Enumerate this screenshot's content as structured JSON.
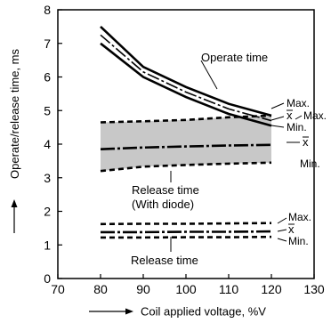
{
  "chart_data": {
    "type": "line",
    "xlabel": "Coil applied voltage, %V",
    "ylabel": "Operate/release time, ms",
    "xlim": [
      70,
      130
    ],
    "ylim": [
      0,
      8
    ],
    "xticks": [
      70,
      80,
      90,
      100,
      110,
      120,
      130
    ],
    "yticks": [
      0,
      1,
      2,
      3,
      4,
      5,
      6,
      7,
      8
    ],
    "grid": false,
    "series": [
      {
        "name": "Operate time",
        "stat": "max",
        "x": [
          80,
          90,
          100,
          110,
          120
        ],
        "y": [
          7.5,
          6.3,
          5.7,
          5.2,
          4.85
        ]
      },
      {
        "name": "Operate time",
        "stat": "mean",
        "x": [
          80,
          90,
          100,
          110,
          120
        ],
        "y": [
          7.25,
          6.15,
          5.55,
          5.05,
          4.7
        ]
      },
      {
        "name": "Operate time",
        "stat": "min",
        "x": [
          80,
          90,
          100,
          110,
          120
        ],
        "y": [
          7.0,
          6.0,
          5.4,
          4.9,
          4.55
        ]
      },
      {
        "name": "Release time (With diode)",
        "stat": "max",
        "x": [
          80,
          90,
          100,
          110,
          120
        ],
        "y": [
          4.65,
          4.68,
          4.72,
          4.8,
          4.85
        ]
      },
      {
        "name": "Release time (With diode)",
        "stat": "mean",
        "x": [
          80,
          90,
          100,
          110,
          120
        ],
        "y": [
          3.85,
          3.9,
          3.93,
          3.96,
          3.98
        ]
      },
      {
        "name": "Release time (With diode)",
        "stat": "min",
        "x": [
          80,
          90,
          100,
          110,
          120
        ],
        "y": [
          3.2,
          3.33,
          3.38,
          3.42,
          3.45
        ]
      },
      {
        "name": "Release time",
        "stat": "max",
        "x": [
          80,
          90,
          100,
          110,
          120
        ],
        "y": [
          1.62,
          1.63,
          1.63,
          1.64,
          1.65
        ]
      },
      {
        "name": "Release time",
        "stat": "mean",
        "x": [
          80,
          90,
          100,
          110,
          120
        ],
        "y": [
          1.38,
          1.38,
          1.39,
          1.39,
          1.4
        ]
      },
      {
        "name": "Release time",
        "stat": "min",
        "x": [
          80,
          90,
          100,
          110,
          120
        ],
        "y": [
          1.22,
          1.22,
          1.23,
          1.23,
          1.24
        ]
      }
    ],
    "annotations": {
      "operate_label": "Operate time",
      "release_diode_label_1": "Release time",
      "release_diode_label_2": "(With diode)",
      "release_label": "Release time",
      "max": "Max.",
      "mean": "x",
      "min": "Min."
    },
    "colors": {
      "line": "#000000",
      "band_fill": "#c8c8c8"
    }
  }
}
